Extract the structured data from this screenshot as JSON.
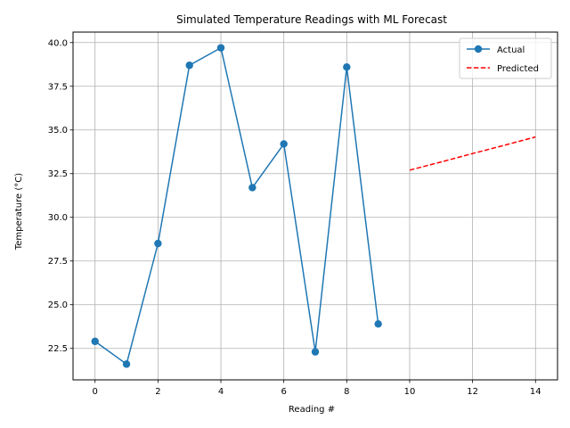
{
  "chart_data": {
    "type": "line",
    "title": "Simulated Temperature Readings with ML Forecast",
    "xlabel": "Reading #",
    "ylabel": "Temperature (°C)",
    "xlim": [
      -0.7,
      14.7
    ],
    "ylim": [
      20.7,
      40.6
    ],
    "x_ticks": [
      0,
      2,
      4,
      6,
      8,
      10,
      12,
      14
    ],
    "y_ticks": [
      22.5,
      25.0,
      27.5,
      30.0,
      32.5,
      35.0,
      37.5,
      40.0
    ],
    "x_tick_labels": [
      "0",
      "2",
      "4",
      "6",
      "8",
      "10",
      "12",
      "14"
    ],
    "y_tick_labels": [
      "22.5",
      "25.0",
      "27.5",
      "30.0",
      "32.5",
      "35.0",
      "37.5",
      "40.0"
    ],
    "grid": true,
    "legend_position": "top-right",
    "series": [
      {
        "name": "Actual",
        "color": "#1f77b4",
        "style": "solid-with-markers",
        "x": [
          0,
          1,
          2,
          3,
          4,
          5,
          6,
          7,
          8,
          9
        ],
        "y": [
          22.9,
          21.6,
          28.5,
          38.7,
          39.7,
          31.7,
          34.2,
          22.3,
          38.6,
          23.9
        ]
      },
      {
        "name": "Predicted",
        "color": "#ff0000",
        "style": "dashed",
        "x": [
          10,
          11,
          12,
          13,
          14
        ],
        "y": [
          32.7,
          33.17,
          33.65,
          34.12,
          34.6
        ]
      }
    ]
  }
}
